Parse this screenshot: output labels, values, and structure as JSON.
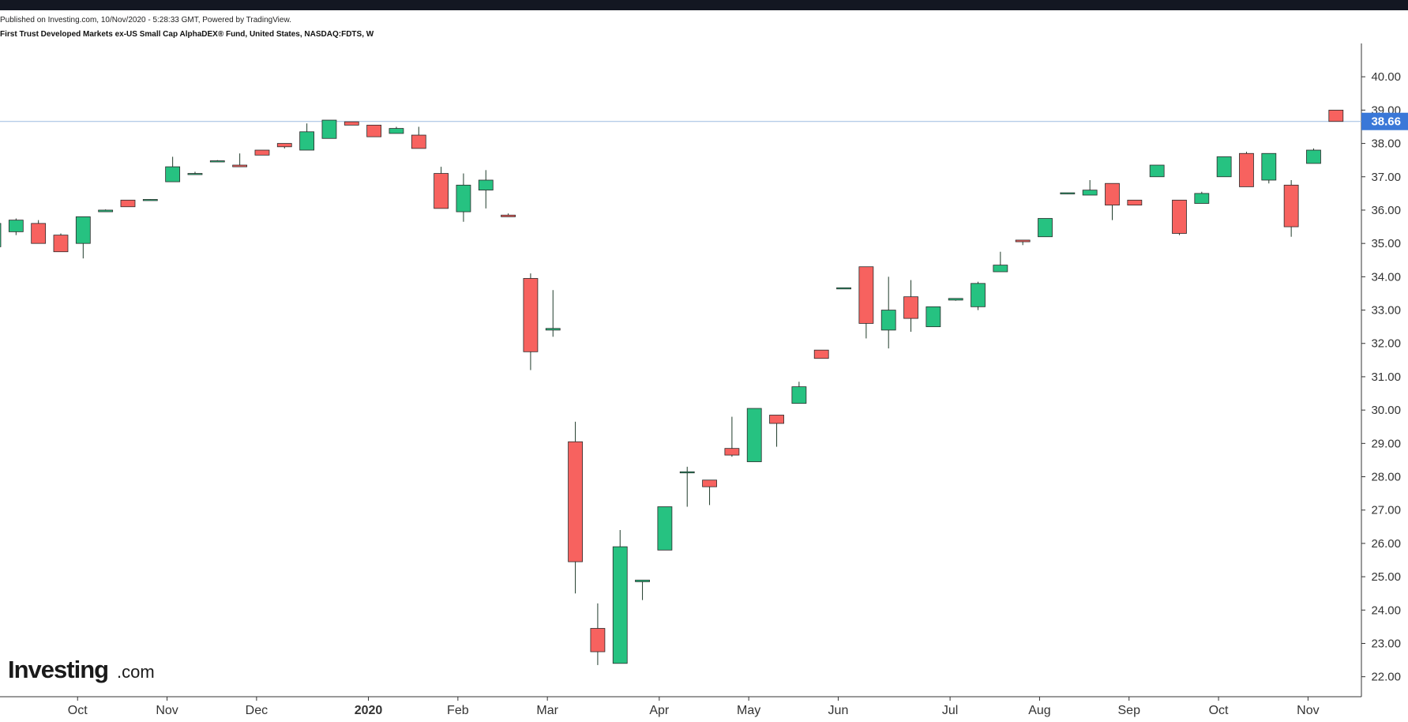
{
  "header": {
    "published": "Published on Investing.com, 10/Nov/2020 - 5:28:33 GMT, Powered by TradingView.",
    "instrument": "First Trust Developed Markets ex-US Small Cap AlphaDEX® Fund, United States, NASDAQ:FDTS, W"
  },
  "logo": {
    "main": "Investing",
    "suffix": ".com"
  },
  "colors": {
    "up": "#26c281",
    "down": "#f7625f",
    "wick": "#1f3b2a",
    "last_price_line": "#9bbbe0",
    "last_price_badge": "#3a78d8",
    "axis": "#333333",
    "top_bar": "#131722"
  },
  "chart_data": {
    "type": "candlestick",
    "title": "First Trust Developed Markets ex-US Small Cap AlphaDEX® Fund, United States, NASDAQ:FDTS, W",
    "interval": "W",
    "ylim": [
      21.4,
      41.0
    ],
    "y_ticks": [
      "22.00",
      "23.00",
      "24.00",
      "25.00",
      "26.00",
      "27.00",
      "28.00",
      "29.00",
      "30.00",
      "31.00",
      "32.00",
      "33.00",
      "34.00",
      "35.00",
      "36.00",
      "37.00",
      "38.00",
      "39.00",
      "40.00"
    ],
    "x_ticks": [
      {
        "label": "Oct",
        "bar": 3.75
      },
      {
        "label": "Nov",
        "bar": 7.75
      },
      {
        "label": "Dec",
        "bar": 11.75
      },
      {
        "label": "2020",
        "bar": 16.75,
        "bold": true
      },
      {
        "label": "Feb",
        "bar": 20.75
      },
      {
        "label": "Mar",
        "bar": 24.75
      },
      {
        "label": "Apr",
        "bar": 29.75
      },
      {
        "label": "May",
        "bar": 33.75
      },
      {
        "label": "Jun",
        "bar": 37.75
      },
      {
        "label": "Jul",
        "bar": 42.75
      },
      {
        "label": "Aug",
        "bar": 46.75
      },
      {
        "label": "Sep",
        "bar": 50.75
      },
      {
        "label": "Oct",
        "bar": 54.75
      },
      {
        "label": "Nov",
        "bar": 58.75
      }
    ],
    "last_price": 38.66,
    "last_price_label": "38.66",
    "bars_visible": 61,
    "candles": [
      {
        "o": 34.9,
        "h": 35.7,
        "l": 34.9,
        "c": 35.6
      },
      {
        "o": 35.35,
        "h": 35.75,
        "l": 35.25,
        "c": 35.7
      },
      {
        "o": 35.6,
        "h": 35.7,
        "l": 35.0,
        "c": 35.0
      },
      {
        "o": 35.25,
        "h": 35.3,
        "l": 34.75,
        "c": 34.75
      },
      {
        "o": 35.0,
        "h": 35.8,
        "l": 34.55,
        "c": 35.8
      },
      {
        "o": 35.95,
        "h": 36.02,
        "l": 35.95,
        "c": 36.0
      },
      {
        "o": 36.3,
        "h": 36.3,
        "l": 36.1,
        "c": 36.1
      },
      {
        "o": 36.3,
        "h": 36.33,
        "l": 36.3,
        "c": 36.32
      },
      {
        "o": 36.85,
        "h": 37.6,
        "l": 36.85,
        "c": 37.3
      },
      {
        "o": 37.07,
        "h": 37.15,
        "l": 37.07,
        "c": 37.1
      },
      {
        "o": 37.45,
        "h": 37.5,
        "l": 37.45,
        "c": 37.48
      },
      {
        "o": 37.35,
        "h": 37.7,
        "l": 37.3,
        "c": 37.3
      },
      {
        "o": 37.8,
        "h": 37.8,
        "l": 37.65,
        "c": 37.65
      },
      {
        "o": 38.0,
        "h": 38.0,
        "l": 37.85,
        "c": 37.9
      },
      {
        "o": 37.8,
        "h": 38.6,
        "l": 37.8,
        "c": 38.35
      },
      {
        "o": 38.15,
        "h": 38.7,
        "l": 38.15,
        "c": 38.7
      },
      {
        "o": 38.65,
        "h": 38.65,
        "l": 38.55,
        "c": 38.55
      },
      {
        "o": 38.55,
        "h": 38.55,
        "l": 38.2,
        "c": 38.2
      },
      {
        "o": 38.3,
        "h": 38.5,
        "l": 38.3,
        "c": 38.45
      },
      {
        "o": 38.25,
        "h": 38.5,
        "l": 37.85,
        "c": 37.85
      },
      {
        "o": 37.1,
        "h": 37.3,
        "l": 36.05,
        "c": 36.05
      },
      {
        "o": 35.95,
        "h": 37.1,
        "l": 35.65,
        "c": 36.75
      },
      {
        "o": 36.6,
        "h": 37.2,
        "l": 36.05,
        "c": 36.9
      },
      {
        "o": 35.85,
        "h": 35.9,
        "l": 35.8,
        "c": 35.8
      },
      {
        "o": 33.95,
        "h": 34.1,
        "l": 31.2,
        "c": 31.75
      },
      {
        "o": 32.4,
        "h": 33.6,
        "l": 32.2,
        "c": 32.45
      },
      {
        "o": 29.05,
        "h": 29.65,
        "l": 24.5,
        "c": 25.45
      },
      {
        "o": 23.45,
        "h": 24.2,
        "l": 22.35,
        "c": 22.75
      },
      {
        "o": 22.4,
        "h": 26.4,
        "l": 22.4,
        "c": 25.9
      },
      {
        "o": 24.85,
        "h": 24.9,
        "l": 24.3,
        "c": 24.9
      },
      {
        "o": 25.8,
        "h": 27.1,
        "l": 25.8,
        "c": 27.1
      },
      {
        "o": 28.15,
        "h": 28.3,
        "l": 27.1,
        "c": 28.15
      },
      {
        "o": 27.9,
        "h": 27.9,
        "l": 27.15,
        "c": 27.7
      },
      {
        "o": 28.85,
        "h": 29.8,
        "l": 28.6,
        "c": 28.65
      },
      {
        "o": 28.45,
        "h": 30.05,
        "l": 28.45,
        "c": 30.05
      },
      {
        "o": 29.85,
        "h": 29.85,
        "l": 28.9,
        "c": 29.6
      },
      {
        "o": 30.2,
        "h": 30.85,
        "l": 30.2,
        "c": 30.7
      },
      {
        "o": 31.8,
        "h": 31.8,
        "l": 31.55,
        "c": 31.55
      },
      {
        "o": 33.65,
        "h": 33.67,
        "l": 33.65,
        "c": 33.67
      },
      {
        "o": 34.3,
        "h": 34.3,
        "l": 32.15,
        "c": 32.6
      },
      {
        "o": 32.4,
        "h": 34.0,
        "l": 31.85,
        "c": 33.0
      },
      {
        "o": 33.4,
        "h": 33.9,
        "l": 32.35,
        "c": 32.75
      },
      {
        "o": 32.5,
        "h": 33.1,
        "l": 32.5,
        "c": 33.1
      },
      {
        "o": 33.3,
        "h": 33.35,
        "l": 33.28,
        "c": 33.35
      },
      {
        "o": 33.1,
        "h": 33.85,
        "l": 33.0,
        "c": 33.8
      },
      {
        "o": 34.15,
        "h": 34.75,
        "l": 34.15,
        "c": 34.35
      },
      {
        "o": 35.1,
        "h": 35.1,
        "l": 34.95,
        "c": 35.05
      },
      {
        "o": 35.2,
        "h": 35.75,
        "l": 35.2,
        "c": 35.75
      },
      {
        "o": 36.5,
        "h": 36.52,
        "l": 36.48,
        "c": 36.52
      },
      {
        "o": 36.45,
        "h": 36.9,
        "l": 36.45,
        "c": 36.6
      },
      {
        "o": 36.8,
        "h": 36.8,
        "l": 35.7,
        "c": 36.15
      },
      {
        "o": 36.3,
        "h": 36.3,
        "l": 36.15,
        "c": 36.15
      },
      {
        "o": 37.0,
        "h": 37.35,
        "l": 37.0,
        "c": 37.35
      },
      {
        "o": 36.3,
        "h": 36.3,
        "l": 35.25,
        "c": 35.3
      },
      {
        "o": 36.2,
        "h": 36.55,
        "l": 36.2,
        "c": 36.5
      },
      {
        "o": 37.0,
        "h": 37.6,
        "l": 37.0,
        "c": 37.6
      },
      {
        "o": 37.7,
        "h": 37.75,
        "l": 36.7,
        "c": 36.7
      },
      {
        "o": 36.9,
        "h": 37.7,
        "l": 36.8,
        "c": 37.7
      },
      {
        "o": 36.75,
        "h": 36.9,
        "l": 35.2,
        "c": 35.5
      },
      {
        "o": 37.4,
        "h": 37.85,
        "l": 37.4,
        "c": 37.8
      },
      {
        "o": 39.0,
        "h": 39.0,
        "l": 38.66,
        "c": 38.66
      }
    ]
  }
}
